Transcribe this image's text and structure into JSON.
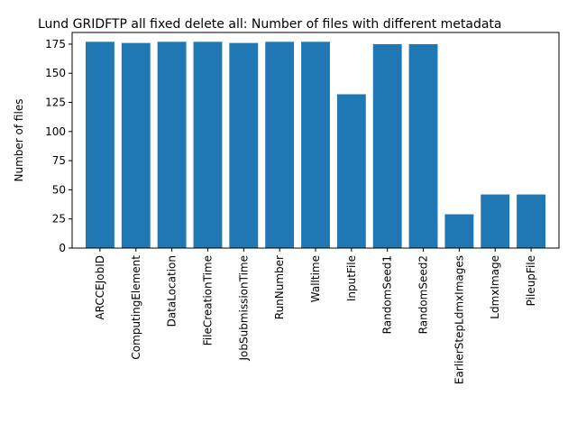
{
  "chart_data": {
    "type": "bar",
    "title": "Lund GRIDFTP all fixed delete all: Number of files with different metadata",
    "xlabel": "",
    "ylabel": "Number of files",
    "ylim": [
      0,
      185
    ],
    "yticks": [
      0,
      25,
      50,
      75,
      100,
      125,
      150,
      175
    ],
    "grid": false,
    "bar_color": "#1f77b4",
    "categories": [
      "ARCCEJobID",
      "ComputingElement",
      "DataLocation",
      "FileCreationTime",
      "JobSubmissionTime",
      "RunNumber",
      "Walltime",
      "InputFile",
      "RandomSeed1",
      "RandomSeed2",
      "EarlierStepLdmxImages",
      "LdmxImage",
      "PileupFile"
    ],
    "values": [
      177,
      176,
      177,
      177,
      176,
      177,
      177,
      132,
      175,
      175,
      29,
      46,
      46
    ]
  }
}
